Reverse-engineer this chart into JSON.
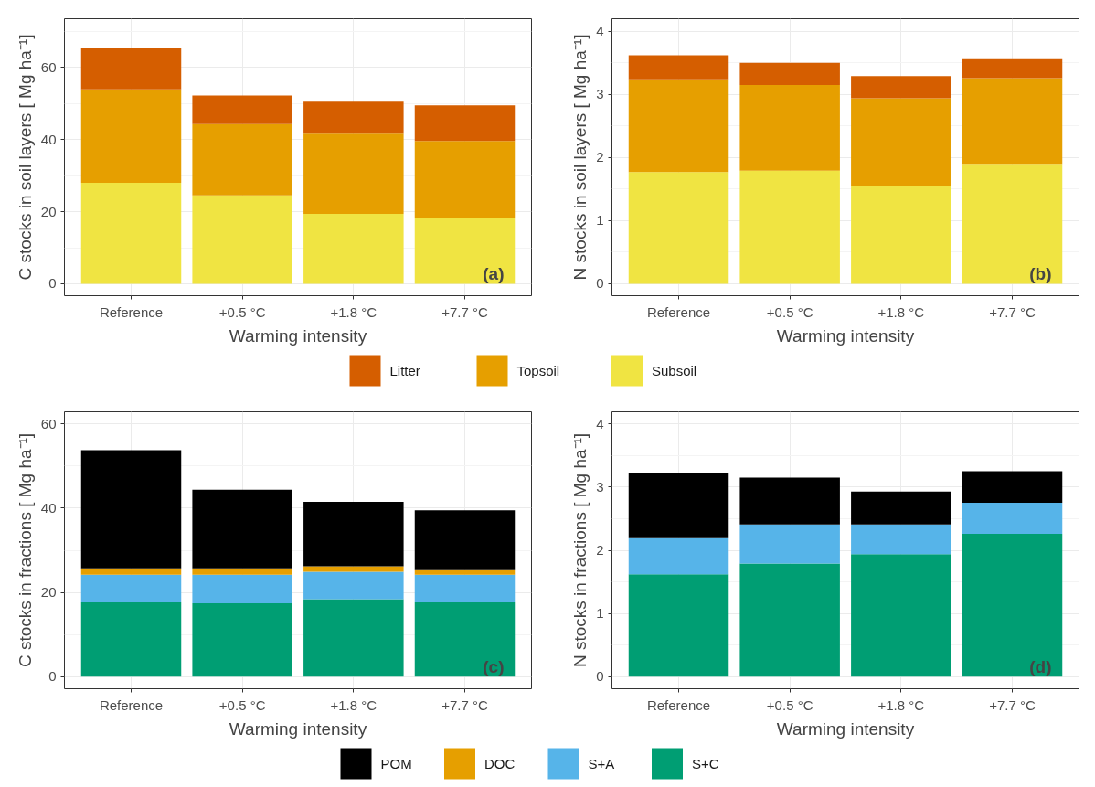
{
  "chart_data": [
    {
      "type": "bar",
      "stacked": true,
      "categories": [
        "Reference",
        "+0.5 °C",
        "+1.8 °C",
        "+7.7 °C"
      ],
      "xlabel": "Warming intensity",
      "ylabel": "C stocks in soil layers [ Mg ha⁻¹]",
      "ylim": [
        -3.3,
        73.5
      ],
      "yticks": [
        0,
        20,
        40,
        60
      ],
      "grid": true,
      "legend": "bottom",
      "annotations": [
        "(a)"
      ],
      "series": [
        {
          "name": "Subsoil",
          "color": "#f0e442",
          "values": [
            28.0,
            24.5,
            19.4,
            18.4
          ]
        },
        {
          "name": "Topsoil",
          "color": "#e69f00",
          "values": [
            25.9,
            19.8,
            22.2,
            21.2
          ]
        },
        {
          "name": "Litter",
          "color": "#d55e00",
          "values": [
            11.6,
            7.9,
            8.9,
            9.9
          ]
        }
      ]
    },
    {
      "type": "bar",
      "stacked": true,
      "categories": [
        "Reference",
        "+0.5 °C",
        "+1.8 °C",
        "+7.7 °C"
      ],
      "xlabel": "Warming intensity",
      "ylabel": "N stocks in soil layers [ Mg ha⁻¹]",
      "ylim": [
        -0.19,
        4.2
      ],
      "yticks": [
        0,
        1,
        2,
        3,
        4
      ],
      "grid": true,
      "annotations": [
        "(b)"
      ],
      "series": [
        {
          "color": "#f0e442",
          "values": [
            1.77,
            1.79,
            1.54,
            1.9
          ]
        },
        {
          "color": "#e69f00",
          "values": [
            1.47,
            1.36,
            1.4,
            1.36
          ]
        },
        {
          "color": "#d55e00",
          "values": [
            0.38,
            0.35,
            0.35,
            0.3
          ]
        }
      ]
    },
    {
      "type": "bar",
      "stacked": true,
      "categories": [
        "Reference",
        "+0.5 °C",
        "+1.8 °C",
        "+7.7 °C"
      ],
      "xlabel": "Warming intensity",
      "ylabel": "C stocks in fractions [ Mg ha⁻¹]",
      "ylim": [
        -2.9,
        62.9
      ],
      "yticks": [
        0,
        20,
        40,
        60
      ],
      "grid": true,
      "legend": "bottom",
      "annotations": [
        "(c)"
      ],
      "series": [
        {
          "name": "S+C",
          "color": "#009e73",
          "values": [
            17.6,
            17.4,
            18.4,
            17.6
          ]
        },
        {
          "name": "S+A",
          "color": "#56b4e9",
          "values": [
            6.6,
            6.8,
            6.5,
            6.6
          ]
        },
        {
          "name": "DOC",
          "color": "#e69f00",
          "values": [
            1.5,
            1.5,
            1.3,
            1.1
          ]
        },
        {
          "name": "POM",
          "color": "#000000",
          "values": [
            28.1,
            18.7,
            15.3,
            14.2
          ]
        }
      ]
    },
    {
      "type": "bar",
      "stacked": true,
      "categories": [
        "Reference",
        "+0.5 °C",
        "+1.8 °C",
        "+7.7 °C"
      ],
      "xlabel": "Warming intensity",
      "ylabel": "N stocks in fractions [ Mg ha⁻¹]",
      "ylim": [
        -0.19,
        4.19
      ],
      "yticks": [
        0,
        1,
        2,
        3,
        4
      ],
      "grid": true,
      "annotations": [
        "(d)"
      ],
      "series": [
        {
          "color": "#009e73",
          "values": [
            1.62,
            1.79,
            1.94,
            2.26
          ]
        },
        {
          "color": "#56b4e9",
          "values": [
            0.57,
            0.62,
            0.47,
            0.49
          ]
        },
        {
          "color": "#000000",
          "values": [
            1.04,
            0.74,
            0.52,
            0.5
          ]
        }
      ]
    }
  ]
}
